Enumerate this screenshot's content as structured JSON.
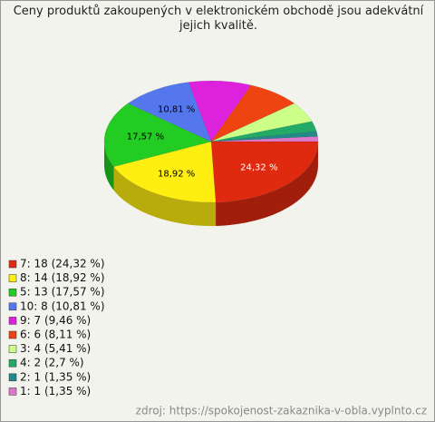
{
  "chart_data": {
    "type": "pie",
    "title": "Ceny produktů zakoupených v elektronickém obchodě jsou adekvátní jejich kvalitě.",
    "categories": [
      "7: 18 (24,32 %)",
      "8: 14 (18,92 %)",
      "5: 13 (17,57 %)",
      "10: 8 (10,81 %)",
      "9: 7 (9,46 %)",
      "6: 6 (8,11 %)",
      "3: 4 (5,41 %)",
      "4: 2 (2,7 %)",
      "2: 1 (1,35 %)",
      "1: 1 (1,35 %)"
    ],
    "values": [
      24.32,
      18.92,
      17.57,
      10.81,
      9.46,
      8.11,
      5.41,
      2.7,
      1.35,
      1.35
    ],
    "value_labels": [
      "24,32 %",
      "18,92 %",
      "17,57 %",
      "10,81 %",
      null,
      null,
      null,
      null,
      null,
      null
    ],
    "colors": [
      "#e02a10",
      "#ffee11",
      "#22cc22",
      "#5577ee",
      "#dd22dd",
      "#ee4411",
      "#ccff88",
      "#22aa66",
      "#228888",
      "#dd77cc"
    ],
    "source": "zdroj: https://spokojenost-zakaznika-v-obla.vyplnto.cz"
  }
}
